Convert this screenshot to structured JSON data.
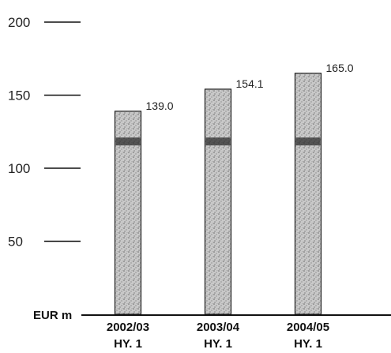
{
  "chart_data": {
    "type": "bar",
    "categories": [
      [
        "2002/03",
        "HY. 1"
      ],
      [
        "2003/04",
        "HY. 1"
      ],
      [
        "2004/05",
        "HY. 1"
      ]
    ],
    "values": [
      139.0,
      154.1,
      165.0
    ],
    "value_labels": [
      "139.0",
      "154.1",
      "165.0"
    ],
    "ylim": [
      0,
      200
    ],
    "yticks": [
      50,
      100,
      150,
      200
    ],
    "ytick_labels": [
      "50",
      "100",
      "150",
      "200"
    ],
    "unit_label": "EUR m",
    "grid": false,
    "colors": {
      "bar_fill": "#b9b9b9",
      "bar_edge": "#1a1a1a",
      "band": "#2c2c2c",
      "axis": "#111111"
    }
  }
}
